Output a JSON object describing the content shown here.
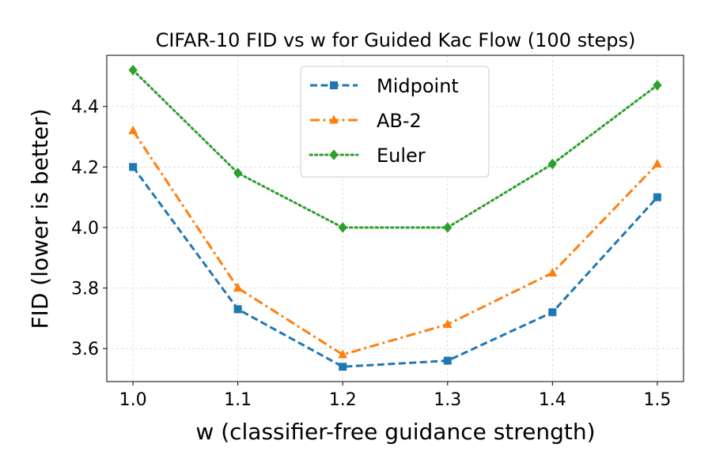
{
  "chart_data": {
    "type": "line",
    "title": "CIFAR-10 FID vs w for Guided Kac Flow (100 steps)",
    "xlabel": "w (classifier-free guidance strength)",
    "ylabel": "FID (lower is better)",
    "x": [
      1.0,
      1.1,
      1.2,
      1.3,
      1.4,
      1.5
    ],
    "x_tick_labels": [
      "1.0",
      "1.1",
      "1.2",
      "1.3",
      "1.4",
      "1.5"
    ],
    "y_ticks": [
      3.6,
      3.8,
      4.0,
      4.2,
      4.4
    ],
    "y_tick_labels": [
      "3.6",
      "3.8",
      "4.0",
      "4.2",
      "4.4"
    ],
    "xlim": [
      0.975,
      1.525
    ],
    "ylim": [
      3.491,
      4.569
    ],
    "grid": true,
    "legend_position": "top-center",
    "series": [
      {
        "name": "Midpoint",
        "color": "#1f77b4",
        "marker": "square",
        "linestyle": "dashed",
        "values": [
          4.2,
          3.73,
          3.54,
          3.56,
          3.72,
          4.1
        ]
      },
      {
        "name": "AB-2",
        "color": "#ff7f0e",
        "marker": "triangle",
        "linestyle": "dashdot",
        "values": [
          4.32,
          3.8,
          3.58,
          3.68,
          3.85,
          4.21
        ]
      },
      {
        "name": "Euler",
        "color": "#2ca02c",
        "marker": "diamond",
        "linestyle": "dotted",
        "values": [
          4.52,
          4.18,
          4.0,
          4.0,
          4.21,
          4.47
        ]
      }
    ]
  }
}
